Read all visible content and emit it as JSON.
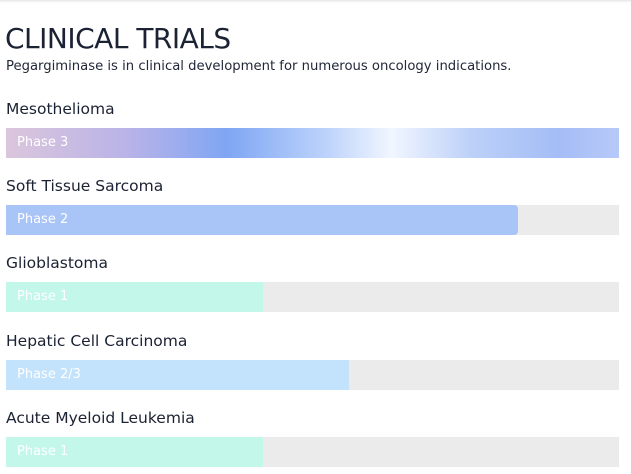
{
  "page": {
    "title": "CLINICAL TRIALS",
    "intro": "Pegargiminase is in clinical development for numerous oncology indications."
  },
  "trials": [
    {
      "name": "Mesothelioma",
      "phase": "Phase 3",
      "progress_percent": 100
    },
    {
      "name": "Soft Tissue Sarcoma",
      "phase": "Phase 2",
      "progress_percent": 83.5
    },
    {
      "name": "Glioblastoma",
      "phase": "Phase 1",
      "progress_percent": 42
    },
    {
      "name": "Hepatic Cell Carcinoma",
      "phase": "Phase 2/3",
      "progress_percent": 56
    },
    {
      "name": "Acute Myeloid Leukemia",
      "phase": "Phase 1",
      "progress_percent": 42
    }
  ],
  "colors": {
    "phase_3_start": "#dbc6dc",
    "phase_3_mid": "#7fa6f3",
    "phase_2": "#a9c4f7",
    "phase_1": "#c3f7ea",
    "phase_2_3": "#c2e3fb",
    "track": "#ebebeb"
  }
}
